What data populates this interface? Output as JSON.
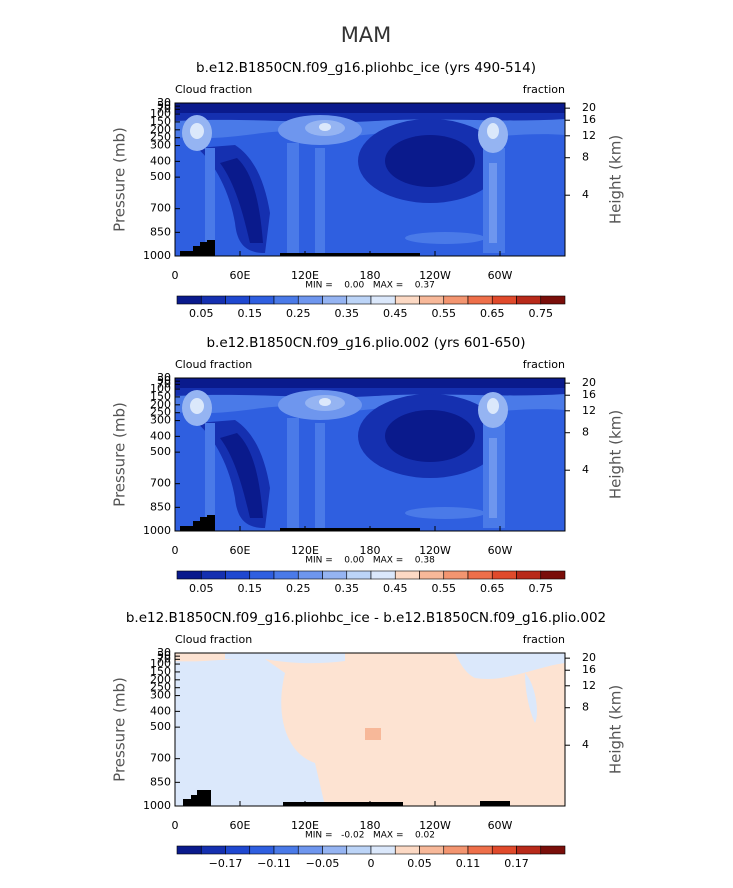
{
  "title": "MAM",
  "chart_data": [
    {
      "type": "contour",
      "title": "b.e12.B1850CN.f09_g16.pliohbc_ice (yrs 490-514)",
      "left_label": "Cloud fraction",
      "right_label": "fraction",
      "ylabel": "Pressure (mb)",
      "y2label": "Height (km)",
      "xlim": [
        0,
        360
      ],
      "xticks": [
        0,
        {
          "value": 60,
          "label": "60E"
        },
        {
          "value": 120,
          "label": "120E"
        },
        180,
        {
          "value": 240,
          "label": "120W"
        },
        {
          "value": 300,
          "label": "60W"
        }
      ],
      "ylim": [
        1000,
        30
      ],
      "yticks": [
        1000,
        850,
        700,
        500,
        400,
        300,
        250,
        200,
        150,
        100,
        70,
        50,
        30
      ],
      "y2lim": [
        1.3,
        22
      ],
      "y2scale": "log",
      "y2ticks": [
        4,
        8,
        12,
        16,
        20
      ],
      "stats": "MIN =    0.00   MAX =    0.37",
      "colorbar": {
        "colors": [
          "#0a1a8c",
          "#1530b0",
          "#1f48d0",
          "#2f5fe0",
          "#4a7ae8",
          "#6e96ee",
          "#95b4f2",
          "#bcd4f7",
          "#dbe8fb",
          "#fcd9c4",
          "#f7b899",
          "#f39570",
          "#ee6f4a",
          "#e04a2b",
          "#b82a1a",
          "#7a0e0a"
        ],
        "labels": [
          0.05,
          null,
          0.15,
          null,
          0.25,
          null,
          0.35,
          null,
          0.45,
          null,
          0.55,
          null,
          0.65,
          null,
          0.75
        ]
      }
    },
    {
      "type": "contour",
      "title": "b.e12.B1850CN.f09_g16.plio.002 (yrs 601-650)",
      "left_label": "Cloud fraction",
      "right_label": "fraction",
      "ylabel": "Pressure (mb)",
      "y2label": "Height (km)",
      "xlim": [
        0,
        360
      ],
      "xticks": [
        0,
        {
          "value": 60,
          "label": "60E"
        },
        {
          "value": 120,
          "label": "120E"
        },
        180,
        {
          "value": 240,
          "label": "120W"
        },
        {
          "value": 300,
          "label": "60W"
        }
      ],
      "ylim": [
        1000,
        30
      ],
      "yticks": [
        1000,
        850,
        700,
        500,
        400,
        300,
        250,
        200,
        150,
        100,
        70,
        50,
        30
      ],
      "y2lim": [
        1.3,
        22
      ],
      "y2scale": "log",
      "y2ticks": [
        4,
        8,
        12,
        16,
        20
      ],
      "stats": "MIN =    0.00   MAX =    0.38",
      "colorbar": {
        "colors": [
          "#0a1a8c",
          "#1530b0",
          "#1f48d0",
          "#2f5fe0",
          "#4a7ae8",
          "#6e96ee",
          "#95b4f2",
          "#bcd4f7",
          "#dbe8fb",
          "#fcd9c4",
          "#f7b899",
          "#f39570",
          "#ee6f4a",
          "#e04a2b",
          "#b82a1a",
          "#7a0e0a"
        ],
        "labels": [
          0.05,
          null,
          0.15,
          null,
          0.25,
          null,
          0.35,
          null,
          0.45,
          null,
          0.55,
          null,
          0.65,
          null,
          0.75
        ]
      }
    },
    {
      "type": "contour",
      "title": "b.e12.B1850CN.f09_g16.pliohbc_ice - b.e12.B1850CN.f09_g16.plio.002",
      "left_label": "Cloud fraction",
      "right_label": "fraction",
      "ylabel": "Pressure (mb)",
      "y2label": "Height (km)",
      "xlim": [
        0,
        360
      ],
      "xticks": [
        0,
        {
          "value": 60,
          "label": "60E"
        },
        {
          "value": 120,
          "label": "120E"
        },
        180,
        {
          "value": 240,
          "label": "120W"
        },
        {
          "value": 300,
          "label": "60W"
        }
      ],
      "ylim": [
        1000,
        30
      ],
      "yticks": [
        1000,
        850,
        700,
        500,
        400,
        300,
        250,
        200,
        150,
        100,
        70,
        50,
        30
      ],
      "y2lim": [
        1.3,
        22
      ],
      "y2scale": "log",
      "y2ticks": [
        4,
        8,
        12,
        16,
        20
      ],
      "stats": "MIN =   -0.02   MAX =    0.02",
      "colorbar": {
        "colors": [
          "#0a1a8c",
          "#1530b0",
          "#1f48d0",
          "#2f5fe0",
          "#4a7ae8",
          "#6e96ee",
          "#95b4f2",
          "#bcd4f7",
          "#dbe8fb",
          "#fcd9c4",
          "#f7b899",
          "#f39570",
          "#ee6f4a",
          "#e04a2b",
          "#b82a1a",
          "#7a0e0a"
        ],
        "labels": [
          null,
          {
            "value": -0.17,
            "label": "−0.17"
          },
          null,
          {
            "value": -0.11,
            "label": "−0.11"
          },
          null,
          {
            "value": -0.05,
            "label": "−0.05"
          },
          null,
          0,
          null,
          0.05,
          null,
          0.11,
          null,
          0.17,
          null
        ]
      }
    }
  ]
}
